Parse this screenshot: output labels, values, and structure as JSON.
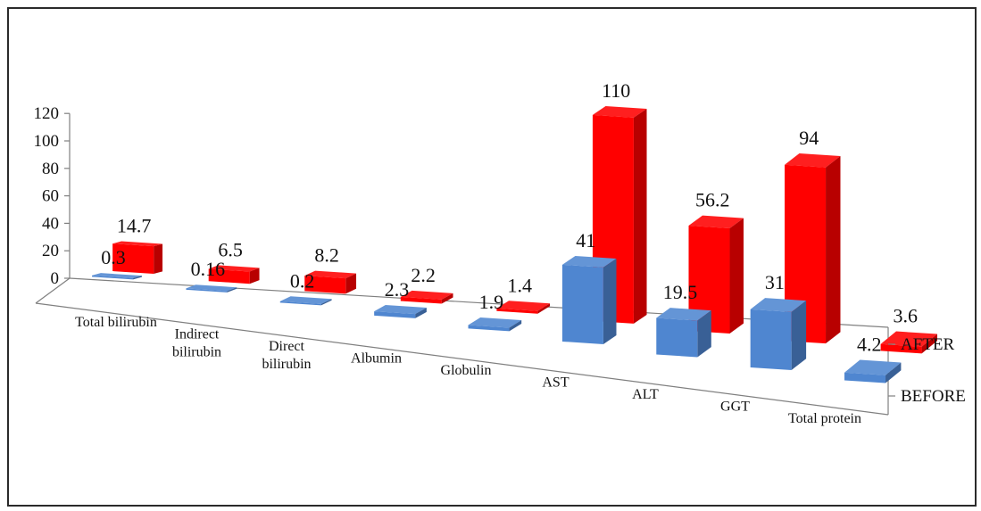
{
  "chart_data": {
    "type": "bar",
    "title": "",
    "xlabel": "",
    "ylabel": "",
    "ylim": [
      0,
      120
    ],
    "yticks": [
      "0",
      "20",
      "40",
      "60",
      "80",
      "100",
      "120"
    ],
    "grid": false,
    "legend": "none",
    "categories": [
      [
        "Total bilirubin"
      ],
      [
        "Indirect",
        "bilirubin"
      ],
      [
        "Direct",
        "bilirubin"
      ],
      [
        "Albumin"
      ],
      [
        "Globulin"
      ],
      [
        "AST"
      ],
      [
        "ALT"
      ],
      [
        "GGT"
      ],
      [
        "Total protein"
      ]
    ],
    "series": [
      {
        "name": "AFTER",
        "color": "#ff0000",
        "values": [
          14.7,
          6.5,
          8.2,
          2.2,
          1.4,
          110,
          56.2,
          94,
          3.6
        ],
        "labels": [
          "14.7",
          "6.5",
          "8.2",
          "2.2",
          "1.4",
          "110",
          "56.2",
          "94",
          "3.6"
        ]
      },
      {
        "name": "BEFORE",
        "color": "#4f86d0",
        "values": [
          0.3,
          0.16,
          0.2,
          2.3,
          1.9,
          41,
          19.5,
          31,
          4.2
        ],
        "labels": [
          "0.3",
          "0.16",
          "0.2",
          "2.3",
          "1.9",
          "41",
          "19.5",
          "31",
          "4.2"
        ]
      }
    ]
  }
}
